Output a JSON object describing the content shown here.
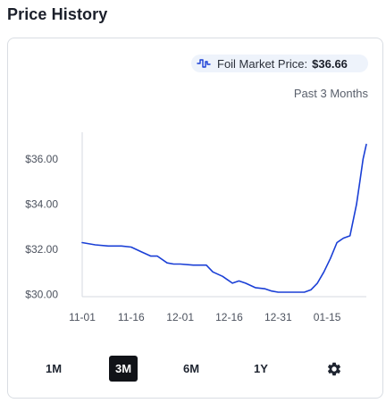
{
  "section": {
    "title": "Price History"
  },
  "market": {
    "label": "Foil Market Price:",
    "value": "$36.66",
    "icon": "step-line-chart-icon",
    "icon_color": "#1a3fd6"
  },
  "range": {
    "label": "Past 3 Months"
  },
  "buttons": [
    {
      "label": "1M",
      "active": false
    },
    {
      "label": "3M",
      "active": true
    },
    {
      "label": "6M",
      "active": false
    },
    {
      "label": "1Y",
      "active": false
    }
  ],
  "settings_icon": "gear-icon",
  "colors": {
    "line": "#1a3fd6",
    "active_bg": "#111318"
  },
  "chart_data": {
    "type": "line",
    "title": "",
    "xlabel": "",
    "ylabel": "",
    "ylim": [
      29.9,
      37.2
    ],
    "y_ticks": [
      {
        "value": 30.0,
        "label": "$30.00"
      },
      {
        "value": 32.0,
        "label": "$32.00"
      },
      {
        "value": 34.0,
        "label": "$34.00"
      },
      {
        "value": 36.0,
        "label": "$36.00"
      }
    ],
    "x_ticks": [
      "11-01",
      "11-16",
      "12-01",
      "12-16",
      "12-31",
      "01-15"
    ],
    "x_tick_positions": [
      0,
      15,
      30,
      45,
      60,
      75
    ],
    "xlim": [
      0,
      87
    ],
    "series": [
      {
        "x": [
          0,
          4,
          8,
          12,
          15,
          18,
          21,
          23,
          26,
          28,
          30,
          34,
          38,
          40,
          43,
          46,
          48,
          50,
          53,
          56,
          58,
          60,
          64,
          68,
          70,
          72,
          74,
          76,
          78,
          80,
          82,
          84,
          85,
          86,
          87
        ],
        "values": [
          32.3,
          32.2,
          32.15,
          32.15,
          32.1,
          31.9,
          31.7,
          31.7,
          31.4,
          31.35,
          31.35,
          31.3,
          31.3,
          31.0,
          30.8,
          30.5,
          30.6,
          30.5,
          30.3,
          30.25,
          30.15,
          30.1,
          30.1,
          30.1,
          30.2,
          30.5,
          31.0,
          31.6,
          32.3,
          32.5,
          32.6,
          34.0,
          35.0,
          36.0,
          36.66
        ]
      }
    ]
  }
}
